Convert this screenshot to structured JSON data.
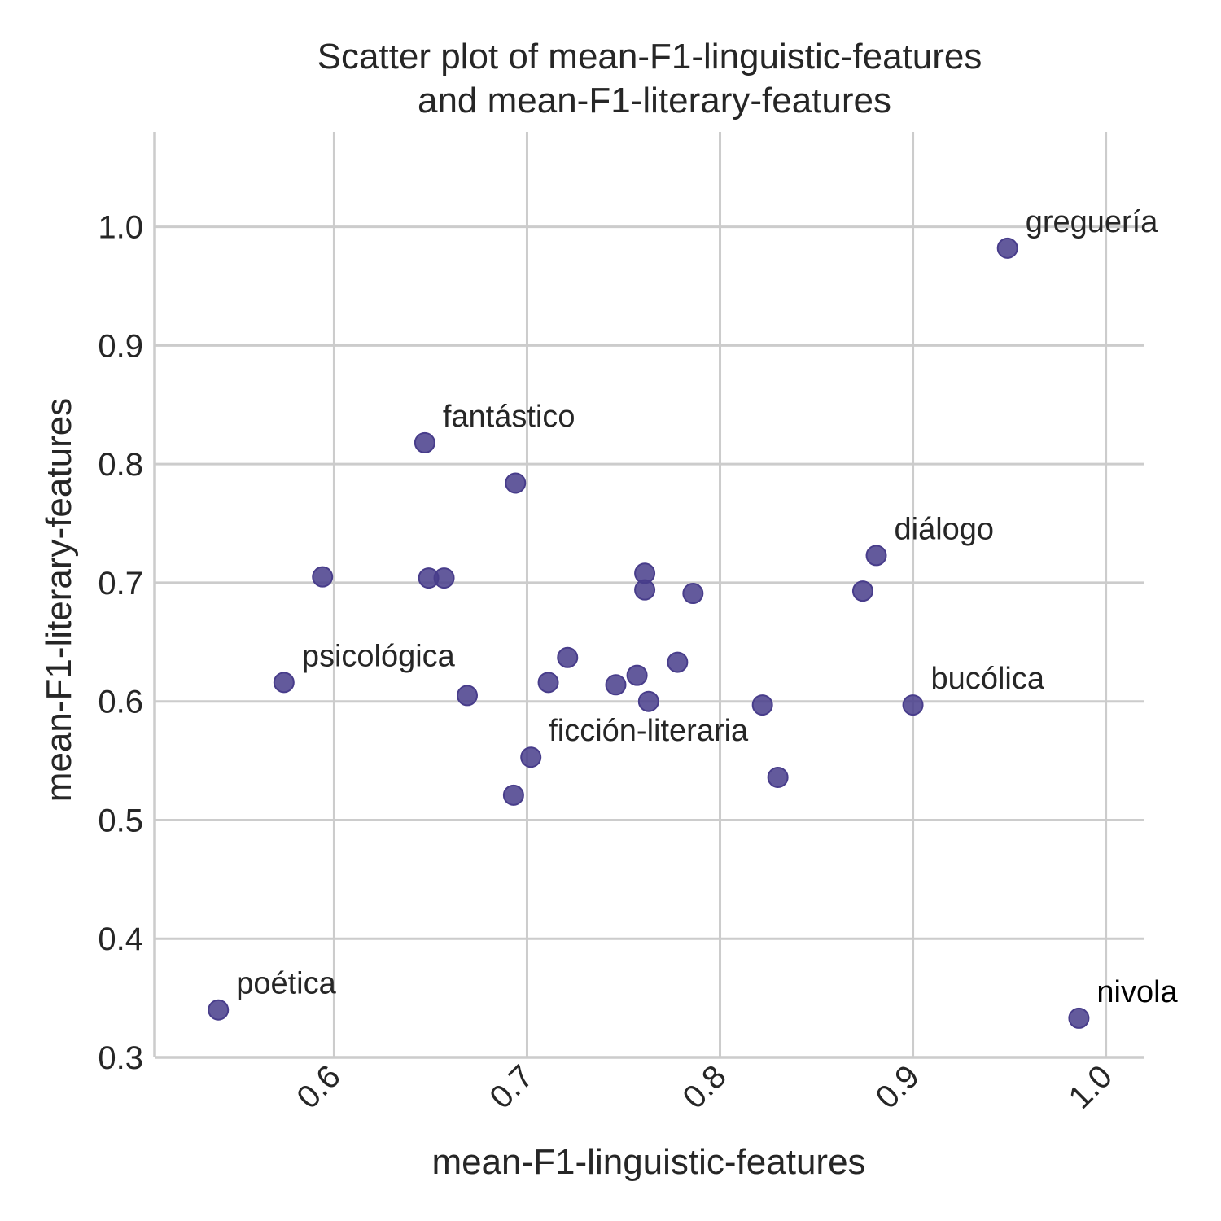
{
  "chart_data": {
    "type": "scatter",
    "title_lines": [
      "Scatter plot of mean-F1-linguistic-features",
      "and mean-F1-literary-features"
    ],
    "xlabel": "mean-F1-linguistic-features",
    "ylabel": "mean-F1-literary-features",
    "xlim": [
      0.507,
      1.02
    ],
    "ylim": [
      0.3,
      1.08
    ],
    "xticks": [
      0.6,
      0.7,
      0.8,
      0.9,
      1.0
    ],
    "xtick_labels": [
      "0.6",
      "0.7",
      "0.8",
      "0.9",
      "1.0"
    ],
    "yticks": [
      0.3,
      0.4,
      0.5,
      0.6,
      0.7,
      0.8,
      0.9,
      1.0
    ],
    "ytick_labels": [
      "0.3",
      "0.4",
      "0.5",
      "0.6",
      "0.7",
      "0.8",
      "0.9",
      "1.0"
    ],
    "grid": true,
    "marker_color": "#483d8b",
    "points": [
      {
        "x": 0.949,
        "y": 0.982,
        "label": "greguería"
      },
      {
        "x": 0.647,
        "y": 0.818,
        "label": "fantástico"
      },
      {
        "x": 0.694,
        "y": 0.784,
        "label": ""
      },
      {
        "x": 0.881,
        "y": 0.723,
        "label": "diálogo"
      },
      {
        "x": 0.874,
        "y": 0.693,
        "label": ""
      },
      {
        "x": 0.594,
        "y": 0.705,
        "label": ""
      },
      {
        "x": 0.649,
        "y": 0.704,
        "label": ""
      },
      {
        "x": 0.657,
        "y": 0.704,
        "label": ""
      },
      {
        "x": 0.761,
        "y": 0.708,
        "label": ""
      },
      {
        "x": 0.761,
        "y": 0.694,
        "label": ""
      },
      {
        "x": 0.786,
        "y": 0.691,
        "label": ""
      },
      {
        "x": 0.574,
        "y": 0.616,
        "label": "psicológica"
      },
      {
        "x": 0.669,
        "y": 0.605,
        "label": ""
      },
      {
        "x": 0.711,
        "y": 0.616,
        "label": ""
      },
      {
        "x": 0.721,
        "y": 0.637,
        "label": ""
      },
      {
        "x": 0.746,
        "y": 0.614,
        "label": ""
      },
      {
        "x": 0.757,
        "y": 0.622,
        "label": ""
      },
      {
        "x": 0.763,
        "y": 0.6,
        "label": ""
      },
      {
        "x": 0.778,
        "y": 0.633,
        "label": ""
      },
      {
        "x": 0.822,
        "y": 0.597,
        "label": ""
      },
      {
        "x": 0.9,
        "y": 0.597,
        "label": "bucólica"
      },
      {
        "x": 0.702,
        "y": 0.553,
        "label": "ficción-literaria"
      },
      {
        "x": 0.693,
        "y": 0.521,
        "label": ""
      },
      {
        "x": 0.83,
        "y": 0.536,
        "label": ""
      },
      {
        "x": 0.54,
        "y": 0.34,
        "label": "poética"
      },
      {
        "x": 0.986,
        "y": 0.333,
        "label": "nivola"
      }
    ]
  }
}
